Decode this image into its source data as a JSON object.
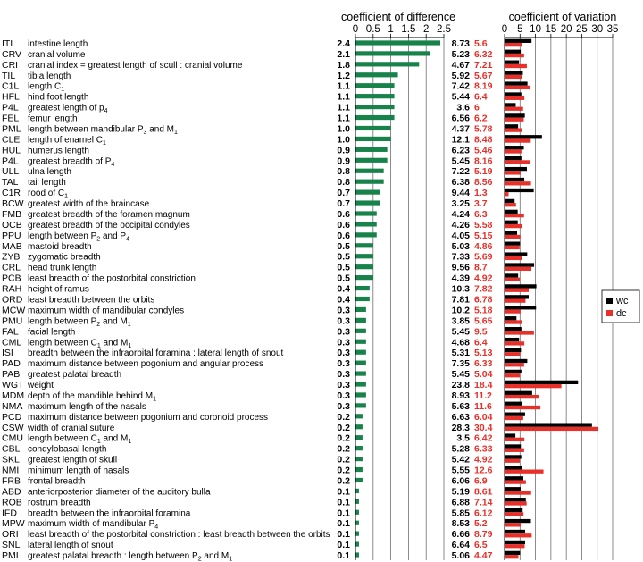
{
  "chart_data": [
    {
      "type": "bar",
      "orientation": "horizontal",
      "title": "coefficient of difference",
      "xlim": [
        0,
        2.5
      ],
      "ticks": [
        "0",
        "0.5",
        "1",
        "1.5",
        "2",
        "2.5"
      ],
      "grid": true,
      "colors": {
        "bar": "#17824a"
      },
      "rows": [
        {
          "abbr": "ITL",
          "label": "intestine length",
          "cd": "2.4"
        },
        {
          "abbr": "CRV",
          "label": "cranial volume",
          "cd": "2.1"
        },
        {
          "abbr": "CRI",
          "label": "cranial index = greatest length of scull : cranial volume",
          "cd": "1.8"
        },
        {
          "abbr": "TIL",
          "label": "tibia length",
          "cd": "1.2"
        },
        {
          "abbr": "C1L",
          "label": "length C",
          "sub": "1",
          "cd": "1.1"
        },
        {
          "abbr": "HFL",
          "label": "hind foot length",
          "cd": "1.1"
        },
        {
          "abbr": "P4L",
          "label": "greatest length of p",
          "sub": "4",
          "cd": "1.1"
        },
        {
          "abbr": "FEL",
          "label": "femur length",
          "cd": "1.1"
        },
        {
          "abbr": "PML",
          "label": "length between mandibular P",
          "sub": "3",
          "label2": " and M",
          "sub2": "1",
          "cd": "1.0"
        },
        {
          "abbr": "CLE",
          "label": "length of enamel C",
          "sub": "1",
          "cd": "1.0"
        },
        {
          "abbr": "HUL",
          "label": "humerus length",
          "cd": "0.9"
        },
        {
          "abbr": "P4L",
          "label": "greatest breadth of P",
          "sub": "4",
          "cd": "0.9"
        },
        {
          "abbr": "ULL",
          "label": "ulna length",
          "cd": "0.8"
        },
        {
          "abbr": "TAL",
          "label": "tail length",
          "cd": "0.8"
        },
        {
          "abbr": "C1R",
          "label": "rood of C",
          "sub": "1",
          "cd": "0.7"
        },
        {
          "abbr": "BCW",
          "label": "greatest width of the braincase",
          "cd": "0.7"
        },
        {
          "abbr": "FMB",
          "label": "greatest breadth of the foramen magnum",
          "cd": "0.6"
        },
        {
          "abbr": "OCB",
          "label": "greatest breadth of the occipital condyles",
          "cd": "0.6"
        },
        {
          "abbr": "PPU",
          "label": "length between P",
          "sub": "2",
          "label2": " and P",
          "sub2": "4",
          "cd": "0.6"
        },
        {
          "abbr": "MAB",
          "label": "mastoid breadth",
          "cd": "0.5"
        },
        {
          "abbr": "ZYB",
          "label": "zygomatic breadth",
          "cd": "0.5"
        },
        {
          "abbr": "CRL",
          "label": "head trunk length",
          "cd": "0.5"
        },
        {
          "abbr": "PCB",
          "label": "least breadth of the postorbital constriction",
          "cd": "0.5"
        },
        {
          "abbr": "RAH",
          "label": "height of ramus",
          "cd": "0.4"
        },
        {
          "abbr": "ORD",
          "label": "least breadth between the orbits",
          "cd": "0.4"
        },
        {
          "abbr": "MCW",
          "label": "maximum width of mandibular condyles",
          "cd": "0.3"
        },
        {
          "abbr": "PMU",
          "label": "length between P",
          "sub": "2",
          "label2": " and M",
          "sub2": "1",
          "cd": "0.3"
        },
        {
          "abbr": "FAL",
          "label": "facial length",
          "cd": "0.3"
        },
        {
          "abbr": "CML",
          "label": "length between C",
          "sub": "1",
          "label2": " and M",
          "sub2": "1",
          "cd": "0.3"
        },
        {
          "abbr": "ISI",
          "label": "breadth between the infraorbital foramina : lateral length of snout",
          "cd": "0.3"
        },
        {
          "abbr": "PAD",
          "label": "maximum distance between pogonium and angular process",
          "cd": "0.3"
        },
        {
          "abbr": "PAB",
          "label": "greatest palatal breadth",
          "cd": "0.3"
        },
        {
          "abbr": "WGT",
          "label": "weight",
          "cd": "0.3"
        },
        {
          "abbr": "MDM",
          "label": "depth of the mandible behind M",
          "sub": "1",
          "cd": "0.3"
        },
        {
          "abbr": "NMA",
          "label": "maximum length of the nasals",
          "cd": "0.3"
        },
        {
          "abbr": "PCD",
          "label": "maximum distance between pogonium and coronoid process",
          "cd": "0.2"
        },
        {
          "abbr": "CSW",
          "label": "width of cranial suture",
          "cd": "0.2"
        },
        {
          "abbr": "CMU",
          "label": "length between C",
          "sub": "1",
          "label2": " and M",
          "sub2": "1",
          "cd": "0.2"
        },
        {
          "abbr": "CBL",
          "label": "condylobasal length",
          "cd": "0.2"
        },
        {
          "abbr": "SKL",
          "label": "greatest length of skull",
          "cd": "0.2"
        },
        {
          "abbr": "NMI",
          "label": "minimum length of nasals",
          "cd": "0.2"
        },
        {
          "abbr": "FRB",
          "label": "frontal breadth",
          "cd": "0.2"
        },
        {
          "abbr": "ABD",
          "label": "anteriorposterior diameter of the auditory bulla",
          "cd": "0.1"
        },
        {
          "abbr": "ROB",
          "label": "rostrum breadth",
          "cd": "0.1"
        },
        {
          "abbr": "IFD",
          "label": "breadth between the infraorbital foramina",
          "cd": "0.1"
        },
        {
          "abbr": "MPW",
          "label": "maximum width of mandibular P",
          "sub": "4",
          "cd": "0.1"
        },
        {
          "abbr": "ORI",
          "label": "least breadth of the postorbital constriction : least breadth between the orbits",
          "cd": "0.1"
        },
        {
          "abbr": "SNL",
          "label": "lateral length of snout",
          "cd": "0.1"
        },
        {
          "abbr": "PMI",
          "label": "greatest palatal breadth : length between P",
          "sub": "2",
          "label2": " and M",
          "sub2": "1",
          "cd": "0.1"
        }
      ]
    },
    {
      "type": "bar",
      "orientation": "horizontal",
      "title": "coefficient of variation",
      "xlim": [
        0,
        35
      ],
      "ticks": [
        "0",
        "5",
        "10",
        "15",
        "20",
        "25",
        "30",
        "35"
      ],
      "grid": true,
      "legend": {
        "position": "right",
        "entries": [
          {
            "name": "wc",
            "color": "#000000"
          },
          {
            "name": "dc",
            "color": "#e8302a"
          }
        ]
      },
      "series": [
        {
          "name": "wc",
          "color": "#000000",
          "values": [
            "8.73",
            "5.23",
            "4.67",
            "5.92",
            "7.42",
            "5.44",
            "3.6",
            "6.56",
            "4.37",
            "12.1",
            "6.23",
            "5.45",
            "7.22",
            "6.38",
            "9.44",
            "3.25",
            "4.24",
            "4.26",
            "4.05",
            "5.03",
            "7.33",
            "9.56",
            "4.39",
            "10.3",
            "7.81",
            "10.2",
            "3.85",
            "5.45",
            "4.68",
            "5.31",
            "7.35",
            "5.45",
            "23.8",
            "8.93",
            "5.63",
            "6.63",
            "28.3",
            "3.5",
            "5.28",
            "5.42",
            "5.55",
            "6.06",
            "5.19",
            "6.88",
            "5.85",
            "8.53",
            "6.66",
            "6.64",
            "5.06"
          ]
        },
        {
          "name": "dc",
          "color": "#e8302a",
          "values": [
            "5.6",
            "6.32",
            "7.21",
            "5.67",
            "8.19",
            "6.4",
            "6",
            "6.2",
            "5.78",
            "8.48",
            "5.46",
            "8.16",
            "5.19",
            "8.56",
            "1.3",
            "3.7",
            "6.3",
            "5.58",
            "5.15",
            "4.86",
            "5.69",
            "8.7",
            "4.92",
            "7.82",
            "6.78",
            "5.18",
            "5.65",
            "9.5",
            "6.4",
            "5.13",
            "6.33",
            "5.04",
            "18.4",
            "11.2",
            "11.6",
            "6.04",
            "30.4",
            "6.42",
            "6.33",
            "4.92",
            "12.6",
            "6.9",
            "8.61",
            "7.14",
            "6.12",
            "5.2",
            "8.79",
            "6.5",
            "4.47"
          ]
        }
      ]
    }
  ]
}
